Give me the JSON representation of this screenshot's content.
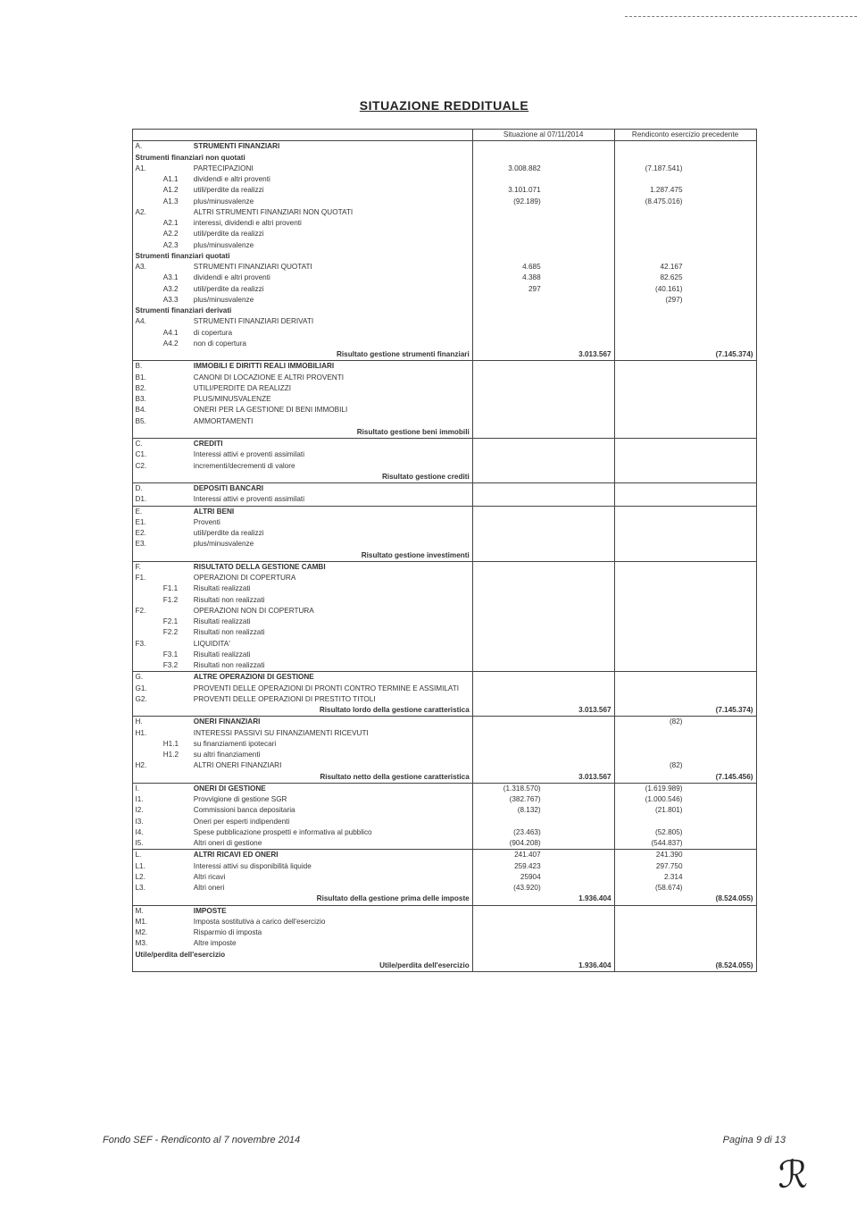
{
  "title": "SITUAZIONE REDDITUALE",
  "col_headers": {
    "c1": "Situazione al 07/11/2014",
    "c2": "Rendiconto esercizio precedente"
  },
  "footer": {
    "left": "Fondo SEF - Rendiconto al 7 novembre 2014",
    "right": "Pagina 9 di 13"
  },
  "rows": [
    {
      "t": "sec",
      "c1": "A.",
      "label": "STRUMENTI FINANZIARI"
    },
    {
      "t": "sub",
      "label": "Strumenti finanziari non quotati"
    },
    {
      "t": "row",
      "c1": "A1.",
      "label": "PARTECIPAZIONI",
      "v1": "3.008.882",
      "v3": "(7.187.541)"
    },
    {
      "t": "row",
      "c2": "A1.1",
      "label": "dividendi e altri proventi"
    },
    {
      "t": "row",
      "c2": "A1.2",
      "label": "utili/perdite da realizzi",
      "v1": "3.101.071",
      "v3": "1.287.475"
    },
    {
      "t": "row",
      "c2": "A1.3",
      "label": "plus/minusvalenze",
      "v1": "(92.189)",
      "v3": "(8.475.016)"
    },
    {
      "t": "row",
      "c1": "A2.",
      "label": "ALTRI STRUMENTI FINANZIARI NON QUOTATI"
    },
    {
      "t": "row",
      "c2": "A2.1",
      "label": "interessi, dividendi e altri proventi"
    },
    {
      "t": "row",
      "c2": "A2.2",
      "label": "utili/perdite da realizzi"
    },
    {
      "t": "row",
      "c2": "A2.3",
      "label": "plus/minusvalenze"
    },
    {
      "t": "sub",
      "label": "Strumenti finanziari quotati"
    },
    {
      "t": "row",
      "c1": "A3.",
      "label": "STRUMENTI FINANZIARI QUOTATI",
      "v1": "4.685",
      "v3": "42.167"
    },
    {
      "t": "row",
      "c2": "A3.1",
      "label": "dividendi e altri proventi",
      "v1": "4.388",
      "v3": "82.625"
    },
    {
      "t": "row",
      "c2": "A3.2",
      "label": "utili/perdite da realizzi",
      "v1": "297",
      "v3": "(40.161)"
    },
    {
      "t": "row",
      "c2": "A3.3",
      "label": "plus/minusvalenze",
      "v3": "(297)"
    },
    {
      "t": "sub",
      "label": "Strumenti finanziari derivati"
    },
    {
      "t": "row",
      "c1": "A4.",
      "label": "STRUMENTI FINANZIARI DERIVATI"
    },
    {
      "t": "row",
      "c2": "A4.1",
      "label": "di copertura"
    },
    {
      "t": "row",
      "c2": "A4.2",
      "label": "non di copertura"
    },
    {
      "t": "tot",
      "label": "Risultato gestione strumenti finanziari",
      "v2": "3.013.567",
      "v4": "(7.145.374)"
    },
    {
      "t": "sec",
      "c1": "B.",
      "label": "IMMOBILI E DIRITTI REALI IMMOBILIARI"
    },
    {
      "t": "row",
      "c1": "B1.",
      "label": "CANONI DI LOCAZIONE E ALTRI PROVENTI"
    },
    {
      "t": "row",
      "c1": "B2.",
      "label": "UTILI/PERDITE DA REALIZZI"
    },
    {
      "t": "row",
      "c1": "B3.",
      "label": "PLUS/MINUSVALENZE"
    },
    {
      "t": "row",
      "c1": "B4.",
      "label": "ONERI PER LA GESTIONE DI BENI IMMOBILI"
    },
    {
      "t": "row",
      "c1": "B5.",
      "label": "AMMORTAMENTI"
    },
    {
      "t": "tot",
      "label": "Risultato gestione beni immobili"
    },
    {
      "t": "sec",
      "c1": "C.",
      "label": "CREDITI"
    },
    {
      "t": "row",
      "c1": "C1.",
      "label": "Interessi attivi e proventi assimilati"
    },
    {
      "t": "row",
      "c1": "C2.",
      "label": "incrementi/decrementi di valore"
    },
    {
      "t": "tot",
      "label": "Risultato gestione crediti"
    },
    {
      "t": "sec",
      "c1": "D.",
      "label": "DEPOSITI BANCARI"
    },
    {
      "t": "row",
      "c1": "D1.",
      "label": "Interessi attivi e proventi assimilati",
      "div": true
    },
    {
      "t": "sec",
      "c1": "E.",
      "label": "ALTRI BENI"
    },
    {
      "t": "row",
      "c1": "E1.",
      "label": "Proventi"
    },
    {
      "t": "row",
      "c1": "E2.",
      "label": "utili/perdite da realizzi"
    },
    {
      "t": "row",
      "c1": "E3.",
      "label": "plus/minusvalenze"
    },
    {
      "t": "tot",
      "label": "Risultato gestione investimenti"
    },
    {
      "t": "sec",
      "c1": "F.",
      "label": "RISULTATO DELLA GESTIONE CAMBI"
    },
    {
      "t": "row",
      "c1": "F1.",
      "label": "OPERAZIONI DI COPERTURA"
    },
    {
      "t": "row",
      "c2": "F1.1",
      "label": "Risultati realizzati"
    },
    {
      "t": "row",
      "c2": "F1.2",
      "label": "Risultati non realizzati"
    },
    {
      "t": "row",
      "c1": "F2.",
      "label": "OPERAZIONI NON DI COPERTURA"
    },
    {
      "t": "row",
      "c2": "F2.1",
      "label": "Risultati realizzati"
    },
    {
      "t": "row",
      "c2": "F2.2",
      "label": "Risultati non realizzati"
    },
    {
      "t": "row",
      "c1": "F3.",
      "label": "LIQUIDITA'"
    },
    {
      "t": "row",
      "c2": "F3.1",
      "label": "Risultati realizzati"
    },
    {
      "t": "row",
      "c2": "F3.2",
      "label": "Risultati non realizzati",
      "div": true
    },
    {
      "t": "sec",
      "c1": "G.",
      "label": "ALTRE OPERAZIONI DI GESTIONE"
    },
    {
      "t": "row",
      "c1": "G1.",
      "label": "PROVENTI DELLE OPERAZIONI DI PRONTI CONTRO TERMINE E ASSIMILATI"
    },
    {
      "t": "row",
      "c1": "G2.",
      "label": "PROVENTI DELLE OPERAZIONI DI PRESTITO TITOLI"
    },
    {
      "t": "tot",
      "label": "Risultato lordo della gestione caratteristica",
      "v2": "3.013.567",
      "v4": "(7.145.374)"
    },
    {
      "t": "sec",
      "c1": "H.",
      "label": "ONERI FINANZIARI",
      "v3": "(82)"
    },
    {
      "t": "row",
      "c1": "H1.",
      "label": "INTERESSI PASSIVI SU FINANZIAMENTI RICEVUTI"
    },
    {
      "t": "row",
      "c2": "H1.1",
      "label": "su finanziamenti ipotecari"
    },
    {
      "t": "row",
      "c2": "H1.2",
      "label": "su altri finanziamenti"
    },
    {
      "t": "row",
      "c1": "H2.",
      "label": "ALTRI ONERI FINANZIARI",
      "v3": "(82)"
    },
    {
      "t": "tot",
      "label": "Risultato netto della gestione caratteristica",
      "v2": "3.013.567",
      "v4": "(7.145.456)"
    },
    {
      "t": "sec",
      "c1": "I.",
      "label": "ONERI DI GESTIONE",
      "v1": "(1.318.570)",
      "v3": "(1.619.989)"
    },
    {
      "t": "row",
      "c1": "I1.",
      "label": "Provvigione di gestione SGR",
      "v1": "(382.767)",
      "v3": "(1.000.546)"
    },
    {
      "t": "row",
      "c1": "I2.",
      "label": "Commissioni banca depositaria",
      "v1": "(8.132)",
      "v3": "(21.801)"
    },
    {
      "t": "row",
      "c1": "I3.",
      "label": "Oneri per esperti indipendenti"
    },
    {
      "t": "row",
      "c1": "I4.",
      "label": "Spese pubblicazione prospetti e informativa al pubblico",
      "v1": "(23.463)",
      "v3": "(52.805)"
    },
    {
      "t": "row",
      "c1": "I5.",
      "label": "Altri oneri di gestione",
      "v1": "(904.208)",
      "v3": "(544.837)",
      "div": true
    },
    {
      "t": "sec",
      "c1": "L.",
      "label": "ALTRI RICAVI ED ONERI",
      "v1": "241.407",
      "v3": "241.390"
    },
    {
      "t": "row",
      "c1": "L1.",
      "label": "Interessi attivi su disponibilità liquide",
      "v1": "259.423",
      "v3": "297.750"
    },
    {
      "t": "row",
      "c1": "L2.",
      "label": "Altri ricavi",
      "v1": "25904",
      "v3": "2.314"
    },
    {
      "t": "row",
      "c1": "L3.",
      "label": "Altri oneri",
      "v1": "(43.920)",
      "v3": "(58.674)"
    },
    {
      "t": "tot",
      "label": "Risultato della gestione prima delle imposte",
      "v2": "1.936.404",
      "v4": "(8.524.055)"
    },
    {
      "t": "sec",
      "c1": "M.",
      "label": "IMPOSTE"
    },
    {
      "t": "row",
      "c1": "M1.",
      "label": "Imposta sostitutiva a carico dell'esercizio"
    },
    {
      "t": "row",
      "c1": "M2.",
      "label": "Risparmio di imposta"
    },
    {
      "t": "row",
      "c1": "M3.",
      "label": "Altre imposte"
    },
    {
      "t": "sub",
      "label": "Utile/perdita dell'esercizio"
    },
    {
      "t": "tot",
      "label": "Utile/perdita dell'esercizio",
      "v2": "1.936.404",
      "v4": "(8.524.055)"
    }
  ]
}
